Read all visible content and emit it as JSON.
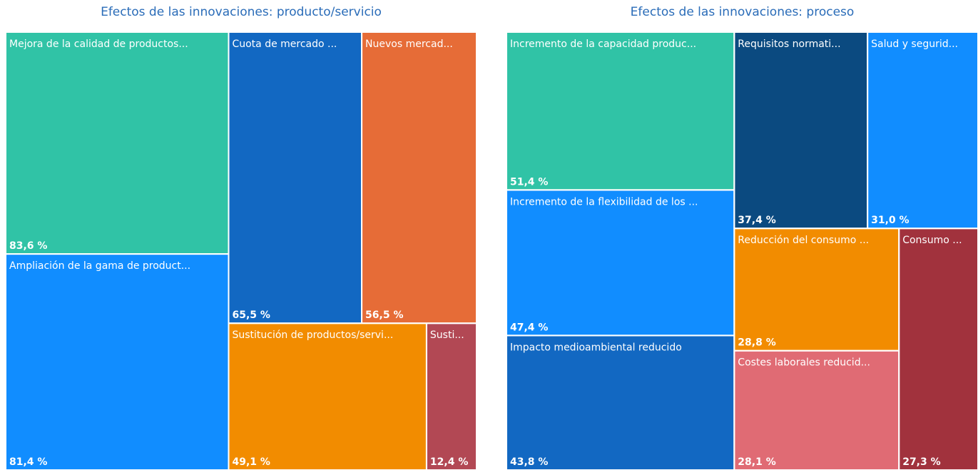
{
  "chart_data": [
    {
      "type": "treemap",
      "title": "Efectos de las innovaciones: producto/servicio",
      "categories": [
        "Mejora de la calidad de productos...",
        "Ampliación de la gama de product...",
        "Cuota de mercado ...",
        "Nuevos mercad...",
        "Sustitución de productos/servi...",
        "Susti..."
      ],
      "values": [
        83.6,
        81.4,
        65.5,
        56.5,
        49.1,
        12.4
      ],
      "value_labels": [
        "83,6 %",
        "81,4 %",
        "65,5 %",
        "56,5 %",
        "49,1 %",
        "12,4 %"
      ],
      "colors": [
        "#30c3a6",
        "#118dff",
        "#1268c2",
        "#e66c37",
        "#f28c00",
        "#b24854"
      ]
    },
    {
      "type": "treemap",
      "title": "Efectos de las innovaciones: proceso",
      "categories": [
        "Incremento de la capacidad produc...",
        "Incremento de la flexibilidad de los ...",
        "Impacto medioambiental reducido",
        "Requisitos normati...",
        "Salud y segurid...",
        "Reducción del consumo ...",
        "Costes laborales reducid...",
        "Consumo ..."
      ],
      "values": [
        51.4,
        47.4,
        43.8,
        37.4,
        31.0,
        28.8,
        28.1,
        27.3
      ],
      "value_labels": [
        "51,4 %",
        "47,4 %",
        "43,8 %",
        "37,4 %",
        "31,0 %",
        "28,8 %",
        "28,1 %",
        "27,3 %"
      ],
      "colors": [
        "#30c3a6",
        "#118dff",
        "#1268c2",
        "#0b4a80",
        "#118dff",
        "#f28c00",
        "#e06b74",
        "#a1323d"
      ]
    }
  ]
}
